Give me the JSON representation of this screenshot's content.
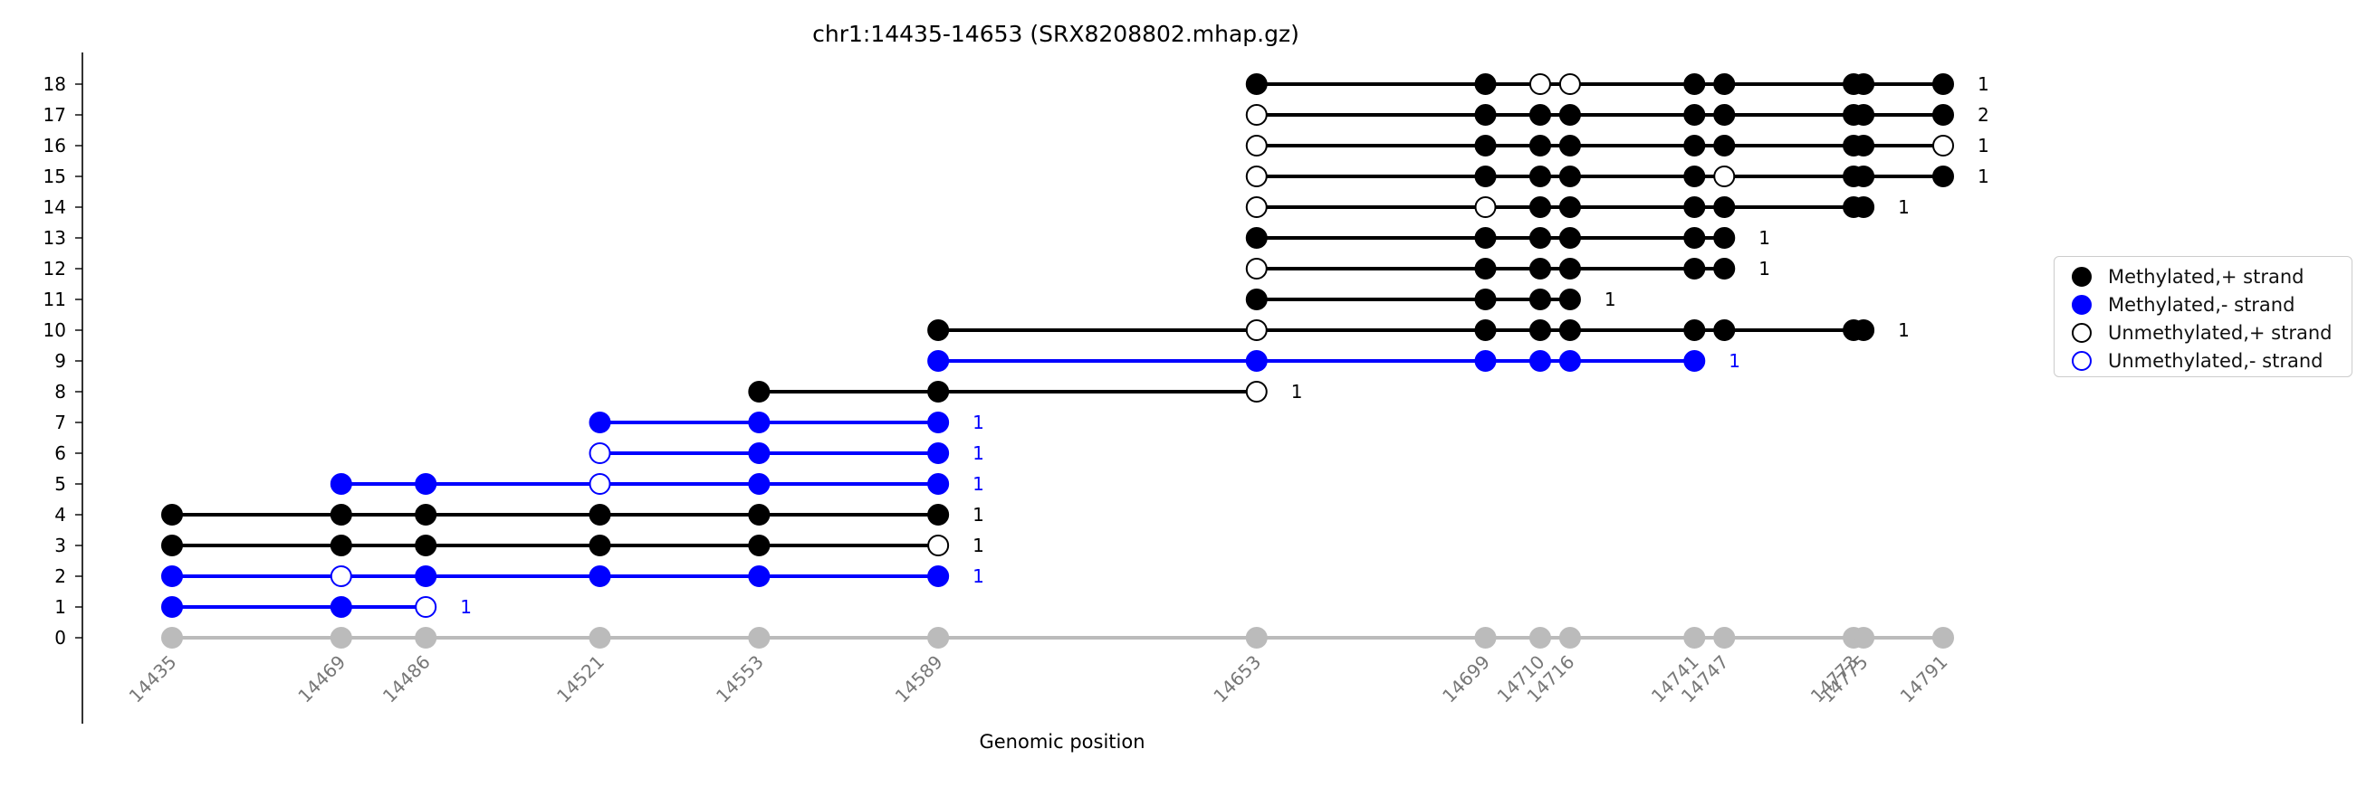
{
  "chart_data": {
    "type": "scatter",
    "title": "chr1:14435-14653 (SRX8208802.mhap.gz)",
    "xlabel": "Genomic position",
    "ylabel": "",
    "positions": [
      14435,
      14469,
      14486,
      14521,
      14553,
      14589,
      14653,
      14699,
      14710,
      14716,
      14741,
      14747,
      14773,
      14775,
      14791
    ],
    "position_labels": [
      "14435",
      "14469",
      "14486",
      "14521",
      "14553",
      "14589",
      "14653",
      "14699",
      "14710",
      "14716",
      "14741",
      "14747",
      "14773",
      "14775",
      "14791"
    ],
    "y_ticks": [
      "0",
      "1",
      "2",
      "3",
      "4",
      "5",
      "6",
      "7",
      "8",
      "9",
      "10",
      "11",
      "12",
      "13",
      "14",
      "15",
      "16",
      "17",
      "18"
    ],
    "ylim": [
      0,
      18
    ],
    "grid": false,
    "legend_position": "right",
    "reference_row": {
      "y": 0,
      "color": "#bbbbbb"
    },
    "reads": [
      {
        "y": 1,
        "strand": "-",
        "start": 0,
        "calls": "MMU",
        "count": "1"
      },
      {
        "y": 2,
        "strand": "-",
        "start": 0,
        "calls": "MUMMMM",
        "count": "1"
      },
      {
        "y": 3,
        "strand": "+",
        "start": 0,
        "calls": "MMMMMU",
        "count": "1"
      },
      {
        "y": 4,
        "strand": "+",
        "start": 0,
        "calls": "MMMMMM",
        "count": "1"
      },
      {
        "y": 5,
        "strand": "-",
        "start": 1,
        "calls": "MMUMM",
        "count": "1"
      },
      {
        "y": 6,
        "strand": "-",
        "start": 3,
        "calls": "UMM",
        "count": "1"
      },
      {
        "y": 7,
        "strand": "-",
        "start": 3,
        "calls": "MMM",
        "count": "1"
      },
      {
        "y": 8,
        "strand": "+",
        "start": 4,
        "calls": "MMU",
        "count": "1"
      },
      {
        "y": 9,
        "strand": "-",
        "start": 5,
        "calls": "MMMMMM",
        "count": "1"
      },
      {
        "y": 10,
        "strand": "+",
        "start": 5,
        "calls": "MUMMMMMMM",
        "count": "1"
      },
      {
        "y": 11,
        "strand": "+",
        "start": 6,
        "calls": "MMMM",
        "count": "1"
      },
      {
        "y": 12,
        "strand": "+",
        "start": 6,
        "calls": "UMMMMM",
        "count": "1"
      },
      {
        "y": 13,
        "strand": "+",
        "start": 6,
        "calls": "MMMMMM",
        "count": "1"
      },
      {
        "y": 14,
        "strand": "+",
        "start": 6,
        "calls": "UUMMMMMM",
        "count": "1"
      },
      {
        "y": 15,
        "strand": "+",
        "start": 6,
        "calls": "UMMMMUMMM",
        "count": "1"
      },
      {
        "y": 16,
        "strand": "+",
        "start": 6,
        "calls": "UMMMMMMMU",
        "count": "1"
      },
      {
        "y": 17,
        "strand": "+",
        "start": 6,
        "calls": "UMMMMMMMM",
        "count": "2"
      },
      {
        "y": 18,
        "strand": "+",
        "start": 6,
        "calls": "MMUUMMMMM",
        "count": "1"
      }
    ],
    "colors": {
      "plus": "#000000",
      "minus": "#0000ff",
      "reference": "#bbbbbb",
      "axis": "#000000",
      "tick_label_x": "#777777"
    },
    "legend": [
      {
        "label": "Methylated,+ strand",
        "fill": "#000000",
        "stroke": "#000000"
      },
      {
        "label": "Methylated,- strand",
        "fill": "#0000ff",
        "stroke": "#0000ff"
      },
      {
        "label": "Unmethylated,+ strand",
        "fill": "#ffffff",
        "stroke": "#000000"
      },
      {
        "label": "Unmethylated,- strand",
        "fill": "#ffffff",
        "stroke": "#0000ff"
      }
    ]
  }
}
